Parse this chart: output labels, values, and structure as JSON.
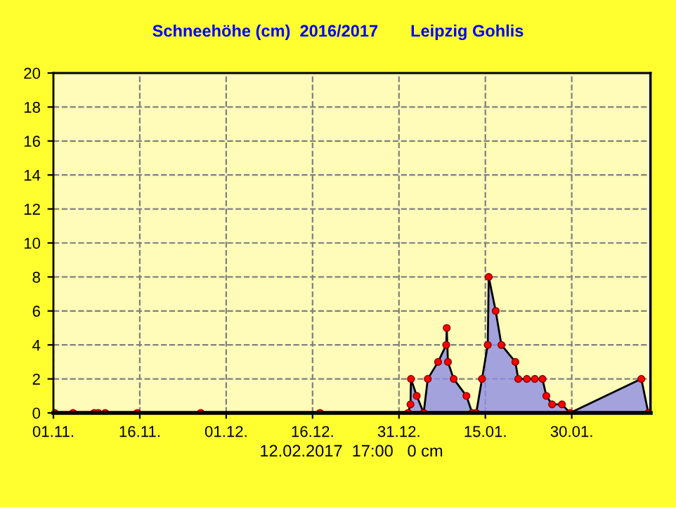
{
  "chart_data": {
    "type": "area",
    "title": "Schneehöhe (cm)  2016/2017       Leipzig Gohlis",
    "annotations": [
      "12.02.2017  17:00   0 cm"
    ],
    "x": [
      "2016-11-01T00:00",
      "2016-11-01T05:00",
      "2016-11-04T10:00",
      "2016-11-08T02:00",
      "2016-11-08T19:00",
      "2016-11-10T00:00",
      "2016-11-15T14:00",
      "2016-11-26T14:00",
      "2016-12-17T07:00",
      "2017-01-01T14:00",
      "2017-01-02T00:00",
      "2017-01-02T02:00",
      "2017-01-03T02:00",
      "2017-01-04T07:00",
      "2017-01-05T00:00",
      "2017-01-06T19:00",
      "2017-01-08T05:00",
      "2017-01-08T07:00",
      "2017-01-08T12:00",
      "2017-01-09T12:00",
      "2017-01-11T17:00",
      "2017-01-12T17:00",
      "2017-01-13T10:00",
      "2017-01-14T10:00",
      "2017-01-15T10:00",
      "2017-01-15T14:00",
      "2017-01-16T19:00",
      "2017-01-17T19:00",
      "2017-01-20T05:00",
      "2017-01-20T17:00",
      "2017-01-22T05:00",
      "2017-01-23T14:00",
      "2017-01-24T22:00",
      "2017-01-25T14:00",
      "2017-01-26T14:00",
      "2017-01-28T07:00",
      "2017-01-29T17:00",
      "2017-02-11T02:00",
      "2017-02-12T07:00"
    ],
    "series": [
      {
        "color": "#8c8ce6",
        "values": [
          0,
          0,
          0,
          0,
          0,
          0,
          0,
          0,
          0,
          0,
          0.5,
          2,
          1,
          0,
          2,
          3,
          4,
          5,
          3,
          2,
          1,
          0,
          0,
          2,
          4,
          8,
          6,
          4,
          3,
          2,
          2,
          2,
          2,
          1,
          0.5,
          0.5,
          0,
          2,
          0
        ]
      }
    ],
    "marker": "circle",
    "xlim": [
      "2016-11-01T00:00",
      "2017-02-12T17:00"
    ],
    "xticks": [
      {
        "value": "2016-11-01",
        "label": "01.11."
      },
      {
        "value": "2016-11-16",
        "label": "16.11."
      },
      {
        "value": "2016-12-01",
        "label": "01.12."
      },
      {
        "value": "2016-12-16",
        "label": "16.12."
      },
      {
        "value": "2016-12-31",
        "label": "31.12."
      },
      {
        "value": "2017-01-15",
        "label": "15.01."
      },
      {
        "value": "2017-01-30",
        "label": "30.01."
      }
    ],
    "ylim": [
      0,
      20
    ],
    "yticks": [
      0,
      2,
      4,
      6,
      8,
      10,
      12,
      14,
      16,
      18,
      20
    ],
    "grid": true,
    "ref_lines": [
      {
        "axis": "x",
        "value": "2017-02-12T17:00",
        "color": "#0000a0"
      }
    ]
  }
}
